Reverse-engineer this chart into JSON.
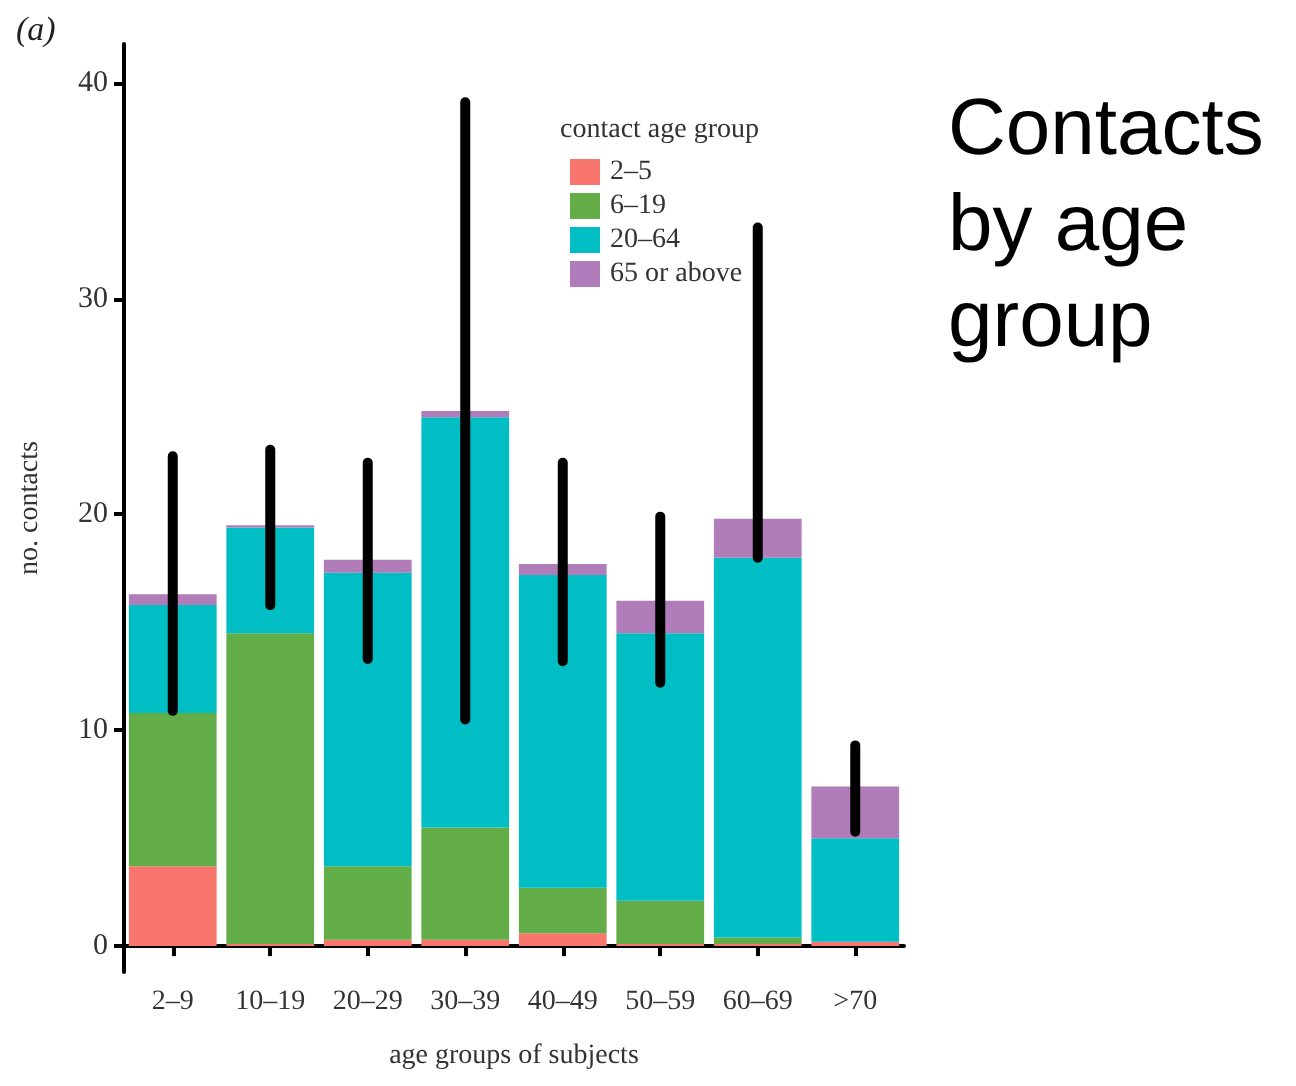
{
  "chart_data": {
    "type": "bar",
    "stacked": true,
    "xlabel": "age groups of subjects",
    "ylabel": "no. contacts",
    "legend_title": "contact age group",
    "annotations": [
      "(a)",
      "Contacts by age group"
    ],
    "categories": [
      "2–9",
      "10–19",
      "20–29",
      "30–39",
      "40–49",
      "50–59",
      "60–69",
      ">70"
    ],
    "ylim": [
      -1.2,
      41.8
    ],
    "yticks": [
      0,
      10,
      20,
      30,
      40
    ],
    "grid": false,
    "legend": "top right",
    "series": [
      {
        "name": "2–5",
        "color": "#f8766d",
        "values": [
          3.7,
          0.1,
          0.3,
          0.3,
          0.6,
          0.1,
          0.1,
          0.2
        ]
      },
      {
        "name": "6–19",
        "color": "#62ad48",
        "values": [
          7.1,
          14.4,
          3.4,
          5.2,
          2.1,
          2.0,
          0.3,
          0
        ]
      },
      {
        "name": "20–64",
        "color": "#00bec4",
        "values": [
          5.0,
          4.9,
          13.6,
          19.0,
          14.5,
          12.4,
          17.6,
          4.8
        ]
      },
      {
        "name": "65 or above",
        "color": "#b07cba",
        "values": [
          0.5,
          0.1,
          0.6,
          0.3,
          0.5,
          1.5,
          1.8,
          2.4
        ],
        "errors": [
          [
            10.9,
            22.7
          ],
          [
            15.8,
            23.0
          ],
          [
            13.3,
            22.4
          ],
          [
            10.5,
            39.1
          ],
          [
            13.2,
            22.4
          ],
          [
            12.2,
            19.9
          ],
          [
            18.0,
            33.3
          ],
          [
            5.3,
            9.3
          ]
        ]
      }
    ]
  }
}
